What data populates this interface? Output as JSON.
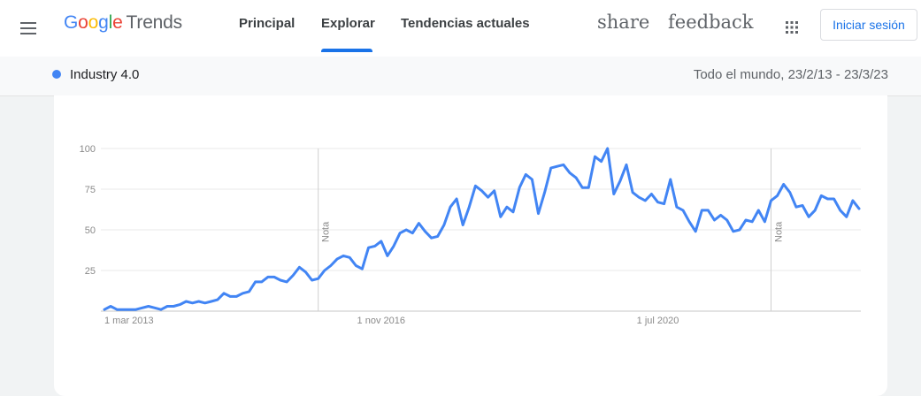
{
  "header": {
    "logo": {
      "letters": [
        "G",
        "o",
        "o",
        "g",
        "l",
        "e"
      ],
      "product": "Trends"
    },
    "nav_tabs": [
      {
        "label": "Principal",
        "active": false
      },
      {
        "label": "Explorar",
        "active": true
      },
      {
        "label": "Tendencias actuales",
        "active": false
      }
    ],
    "share_label": "share",
    "feedback_label": "feedback",
    "menu_icon": "hamburger-menu-icon",
    "apps_icon": "apps-grid-icon",
    "signin_label": "Iniciar sesión"
  },
  "subheader": {
    "term": "Industry 4.0",
    "term_color": "#4285f4",
    "range": "Todo el mundo, 23/2/13 - 23/3/23"
  },
  "colors": {
    "accent": "#1a73e8",
    "series": "#4285f4"
  },
  "chart_data": {
    "type": "line",
    "title": "",
    "xlabel": "",
    "ylabel": "",
    "ylim": [
      0,
      100
    ],
    "yticks": [
      25,
      50,
      75,
      100
    ],
    "x_tick_labels": [
      "1 mar 2013",
      "1 nov 2016",
      "1 jul 2020"
    ],
    "x_tick_positions": [
      "2013-03",
      "2016-11",
      "2020-07"
    ],
    "grid": true,
    "legend": "none",
    "notes": [
      {
        "label": "Nota",
        "x": "2016-01"
      },
      {
        "label": "Nota",
        "x": "2022-01"
      }
    ],
    "series": [
      {
        "name": "Industry 4.0",
        "x": [
          "2013-03",
          "2013-04",
          "2013-05",
          "2013-06",
          "2013-07",
          "2013-08",
          "2013-09",
          "2013-10",
          "2013-11",
          "2013-12",
          "2014-01",
          "2014-02",
          "2014-03",
          "2014-04",
          "2014-05",
          "2014-06",
          "2014-07",
          "2014-08",
          "2014-09",
          "2014-10",
          "2014-11",
          "2014-12",
          "2015-01",
          "2015-02",
          "2015-03",
          "2015-04",
          "2015-05",
          "2015-06",
          "2015-07",
          "2015-08",
          "2015-09",
          "2015-10",
          "2015-11",
          "2015-12",
          "2016-01",
          "2016-02",
          "2016-03",
          "2016-04",
          "2016-05",
          "2016-06",
          "2016-07",
          "2016-08",
          "2016-09",
          "2016-10",
          "2016-11",
          "2016-12",
          "2017-01",
          "2017-02",
          "2017-03",
          "2017-04",
          "2017-05",
          "2017-06",
          "2017-07",
          "2017-08",
          "2017-09",
          "2017-10",
          "2017-11",
          "2017-12",
          "2018-01",
          "2018-02",
          "2018-03",
          "2018-04",
          "2018-05",
          "2018-06",
          "2018-07",
          "2018-08",
          "2018-09",
          "2018-10",
          "2018-11",
          "2018-12",
          "2019-01",
          "2019-02",
          "2019-03",
          "2019-04",
          "2019-05",
          "2019-06",
          "2019-07",
          "2019-08",
          "2019-09",
          "2019-10",
          "2019-11",
          "2019-12",
          "2020-01",
          "2020-02",
          "2020-03",
          "2020-04",
          "2020-05",
          "2020-06",
          "2020-07",
          "2020-08",
          "2020-09",
          "2020-10",
          "2020-11",
          "2020-12",
          "2021-01",
          "2021-02",
          "2021-03",
          "2021-04",
          "2021-05",
          "2021-06",
          "2021-07",
          "2021-08",
          "2021-09",
          "2021-10",
          "2021-11",
          "2021-12",
          "2022-01",
          "2022-02",
          "2022-03",
          "2022-04",
          "2022-05",
          "2022-06",
          "2022-07",
          "2022-08",
          "2022-09",
          "2022-10",
          "2022-11",
          "2022-12",
          "2023-01",
          "2023-02",
          "2023-03"
        ],
        "values": [
          1,
          3,
          1,
          1,
          1,
          1,
          2,
          3,
          2,
          1,
          3,
          3,
          4,
          6,
          5,
          6,
          5,
          6,
          7,
          11,
          9,
          9,
          11,
          12,
          18,
          18,
          21,
          21,
          19,
          18,
          22,
          27,
          24,
          19,
          20,
          25,
          28,
          32,
          34,
          33,
          28,
          26,
          39,
          40,
          43,
          34,
          40,
          48,
          50,
          48,
          54,
          49,
          45,
          46,
          53,
          64,
          69,
          53,
          64,
          77,
          74,
          70,
          74,
          58,
          64,
          61,
          76,
          84,
          81,
          60,
          73,
          88,
          89,
          90,
          85,
          82,
          76,
          76,
          95,
          92,
          100,
          72,
          80,
          90,
          73,
          70,
          68,
          72,
          67,
          66,
          81,
          64,
          62,
          55,
          49,
          62,
          62,
          56,
          59,
          56,
          49,
          50,
          56,
          55,
          62,
          55,
          68,
          71,
          78,
          73,
          64,
          65,
          58,
          62,
          71,
          69,
          69,
          62,
          58,
          68,
          63
        ]
      }
    ]
  }
}
